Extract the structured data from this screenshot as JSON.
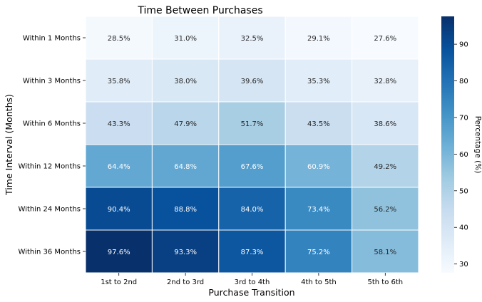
{
  "chart_data": {
    "type": "heatmap",
    "title": "Time Between Purchases",
    "xlabel": "Purchase Transition",
    "ylabel": "Time Interval (Months)",
    "x_categories": [
      "1st to 2nd",
      "2nd to 3rd",
      "3rd to 4th",
      "4th to 5th",
      "5th to 6th"
    ],
    "y_categories": [
      "Within 1 Months",
      "Within 3 Months",
      "Within 6 Months",
      "Within 12 Months",
      "Within 24 Months",
      "Within 36 Months"
    ],
    "values": [
      [
        28.5,
        31.0,
        32.5,
        29.1,
        27.6
      ],
      [
        35.8,
        38.0,
        39.6,
        35.3,
        32.8
      ],
      [
        43.3,
        47.9,
        51.7,
        43.5,
        38.6
      ],
      [
        64.4,
        64.8,
        67.6,
        60.9,
        49.2
      ],
      [
        90.4,
        88.8,
        84.0,
        73.4,
        56.2
      ],
      [
        97.6,
        93.3,
        87.3,
        75.2,
        58.1
      ]
    ],
    "value_format": "{v}%",
    "colorbar": {
      "label": "Percentage (%)",
      "min": 27.6,
      "max": 97.6,
      "ticks": [
        30,
        40,
        50,
        60,
        70,
        80,
        90
      ]
    },
    "colormap": "Blues",
    "colormap_stops": [
      "#f7fbff",
      "#deebf7",
      "#c6dbef",
      "#9ecae1",
      "#6baed6",
      "#4292c6",
      "#2171b5",
      "#08519c",
      "#08306b"
    ]
  }
}
